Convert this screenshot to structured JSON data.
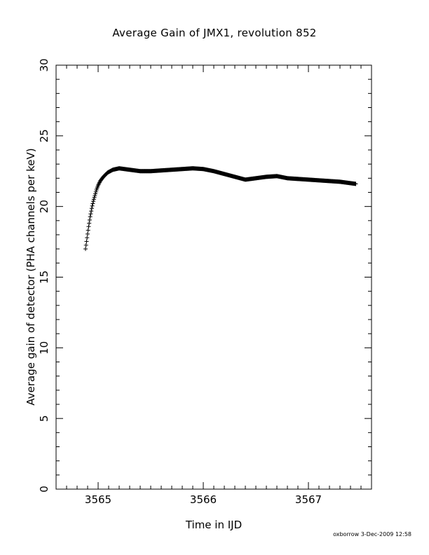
{
  "footer": "oxborrow  3-Dec-2009 12:58",
  "chart_data": {
    "type": "scatter",
    "title": "Average Gain of JMX1, revolution 852",
    "xlabel": "Time in IJD",
    "ylabel": "Average gain of detector (PHA channels per keV)",
    "xlim": [
      3564.6,
      3567.6
    ],
    "ylim": [
      0,
      30
    ],
    "xticks": [
      3565,
      3566,
      3567
    ],
    "yticks": [
      0,
      5,
      10,
      15,
      20,
      25,
      30
    ],
    "xtick_labels": [
      "3565",
      "3566",
      "3567"
    ],
    "ytick_labels": [
      "0",
      "5",
      "10",
      "15",
      "20",
      "25",
      "30"
    ],
    "marker": "+",
    "series": [
      {
        "x": [
          3564.88,
          3564.895,
          3564.91,
          3564.925,
          3564.94,
          3564.955,
          3564.97,
          3564.985,
          3565.0,
          3565.02,
          3565.05,
          3565.09,
          3565.14,
          3565.2,
          3565.3,
          3565.4,
          3565.5,
          3565.6,
          3565.7,
          3565.8,
          3565.9,
          3566.0,
          3566.1,
          3566.2,
          3566.3,
          3566.4,
          3566.5,
          3566.6,
          3566.7,
          3566.8,
          3566.9,
          3567.0,
          3567.1,
          3567.2,
          3567.3,
          3567.4,
          3567.45
        ],
        "y": [
          17.0,
          17.8,
          18.6,
          19.3,
          19.9,
          20.4,
          20.8,
          21.2,
          21.5,
          21.8,
          22.1,
          22.4,
          22.6,
          22.7,
          22.6,
          22.5,
          22.5,
          22.55,
          22.6,
          22.65,
          22.7,
          22.65,
          22.5,
          22.3,
          22.1,
          21.9,
          22.0,
          22.1,
          22.15,
          22.0,
          21.95,
          21.9,
          21.85,
          21.8,
          21.75,
          21.65,
          21.6
        ]
      }
    ]
  }
}
